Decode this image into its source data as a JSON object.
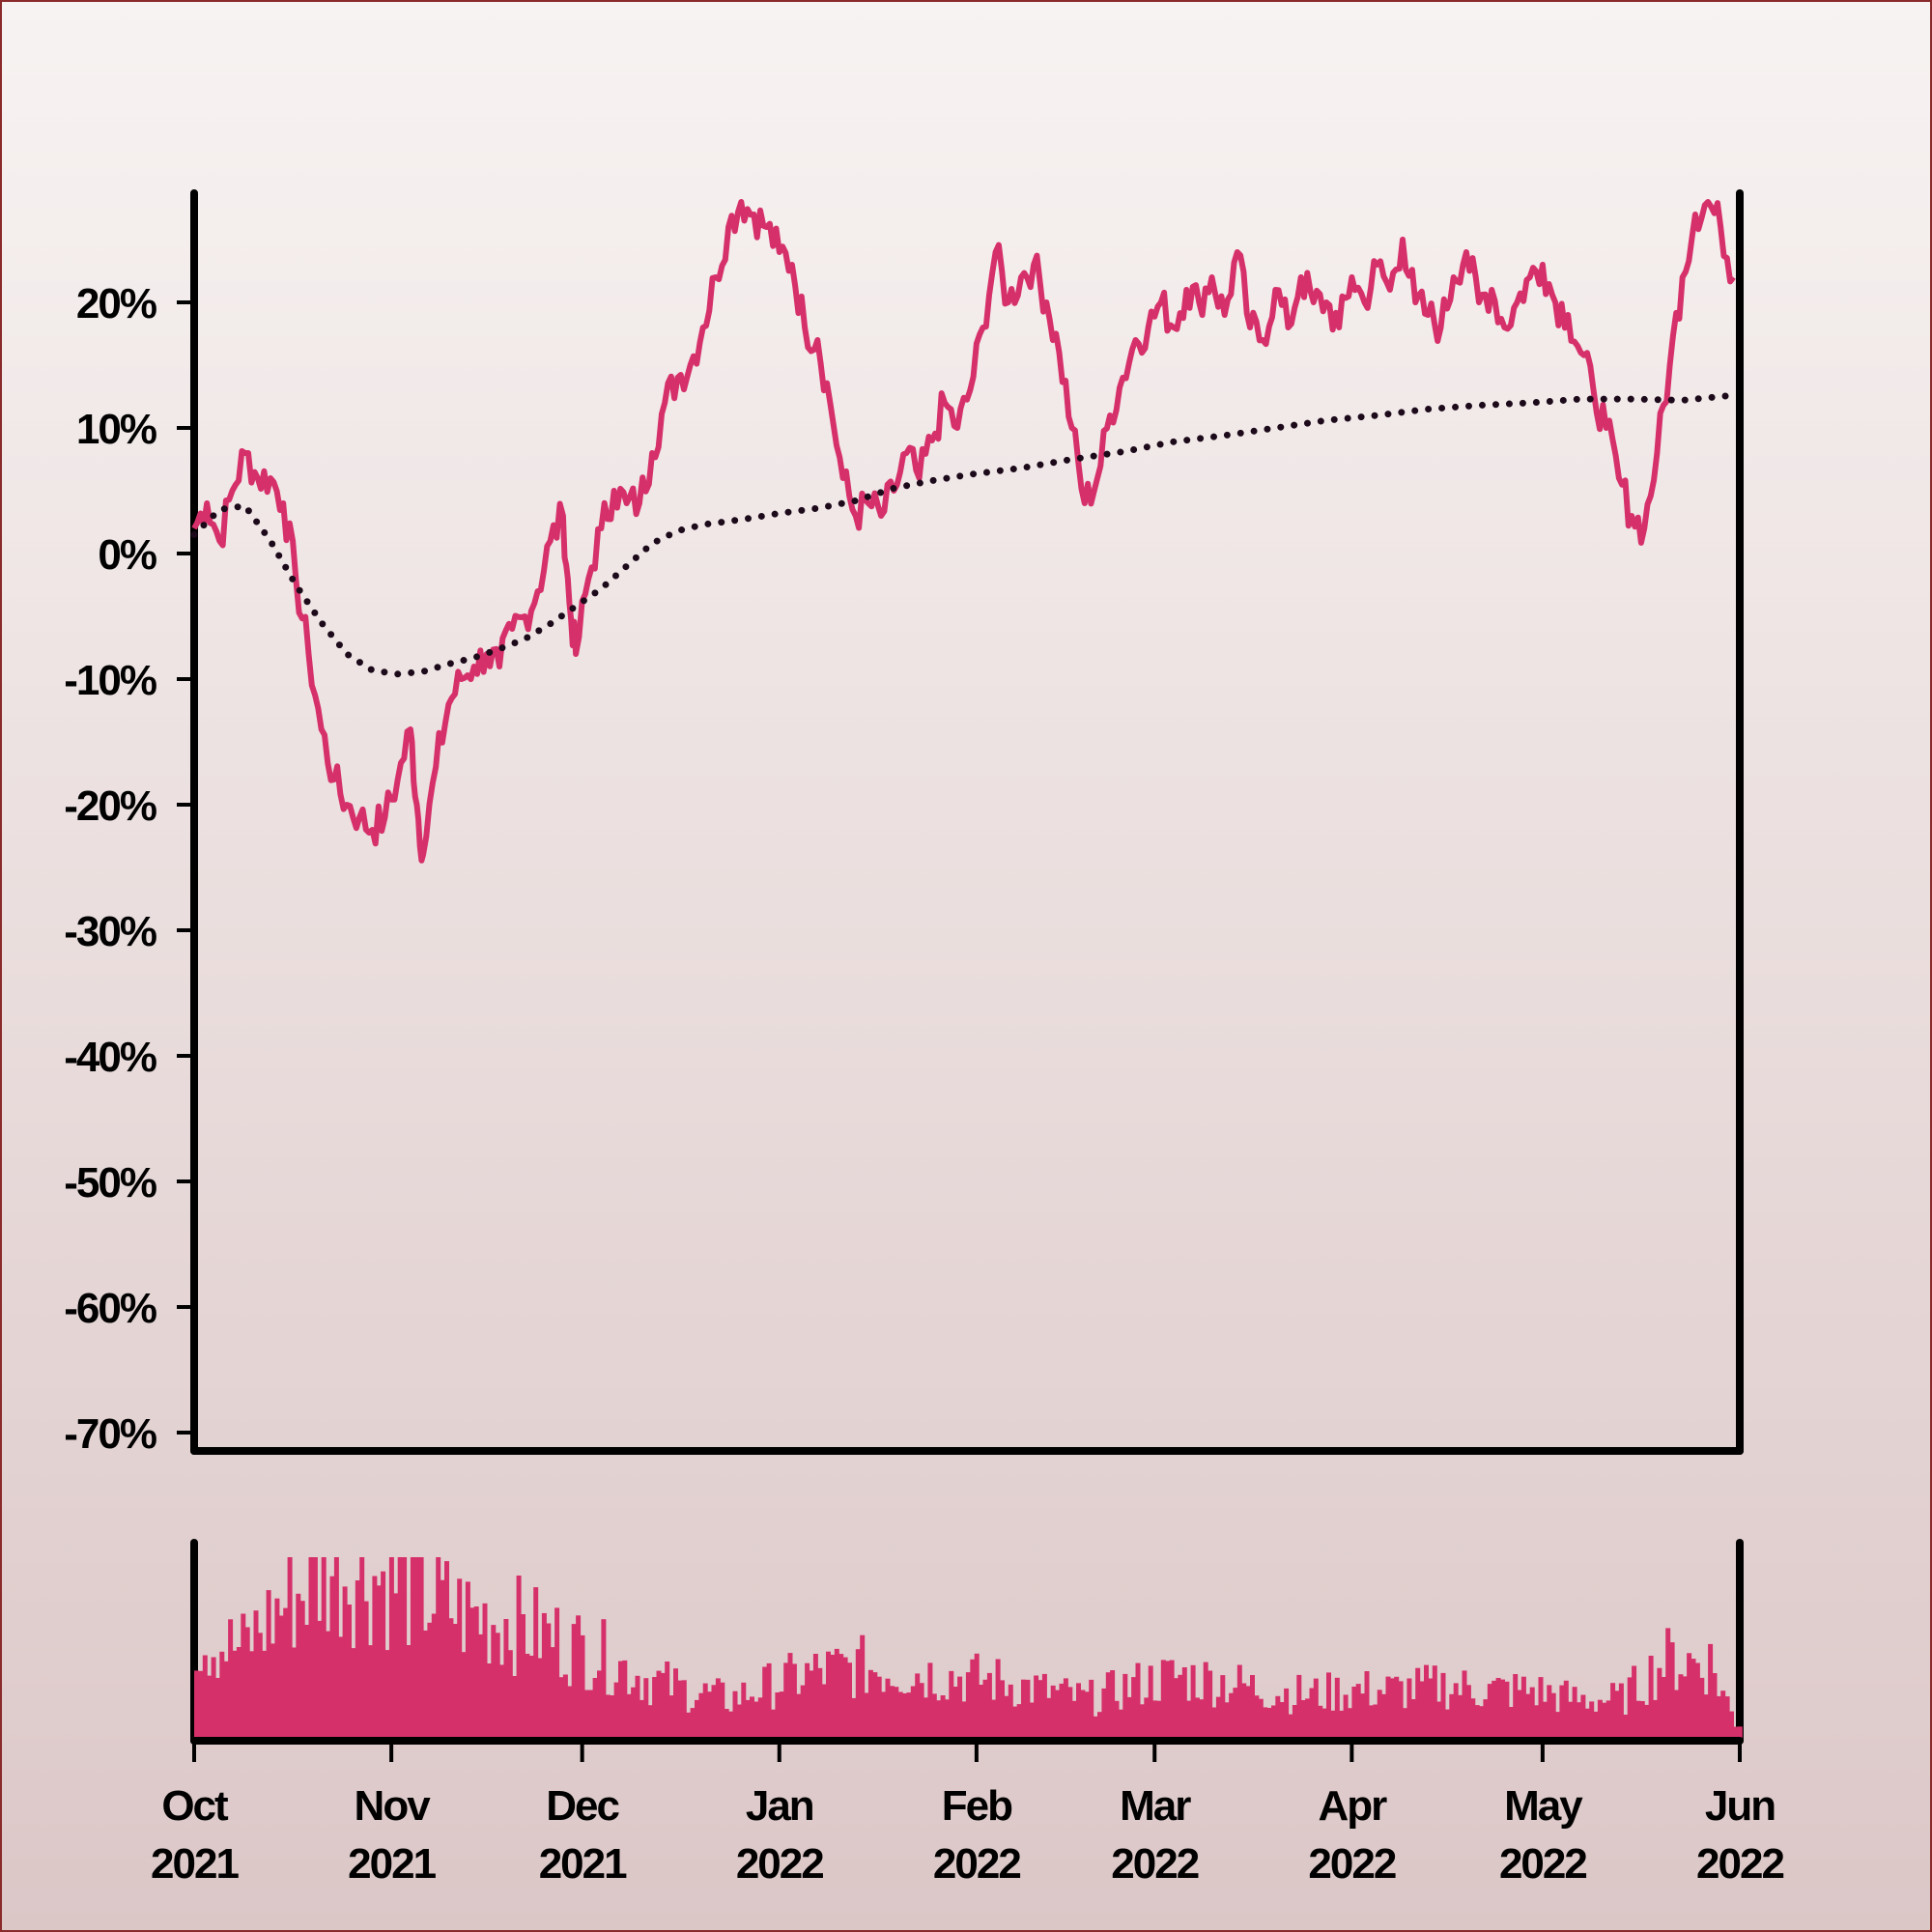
{
  "chart_data": {
    "type": "line",
    "title": "",
    "xlabel": "",
    "ylabel": "",
    "x_range": [
      "2021-10-01",
      "2022-06-01"
    ],
    "ylim": [
      -70,
      28
    ],
    "y_ticks": [
      "20%",
      "10%",
      "0%",
      "-10%",
      "-20%",
      "-30%",
      "-40%",
      "-50%",
      "-60%",
      "-70%"
    ],
    "x_ticks": [
      {
        "month": "Oct",
        "year": "2021"
      },
      {
        "month": "Nov",
        "year": "2021"
      },
      {
        "month": "Dec",
        "year": "2021"
      },
      {
        "month": "Jan",
        "year": "2022"
      },
      {
        "month": "Feb",
        "year": "2022"
      },
      {
        "month": "Mar",
        "year": "2022"
      },
      {
        "month": "Apr",
        "year": "2022"
      },
      {
        "month": "May",
        "year": "2022"
      },
      {
        "month": "Jun",
        "year": "2022"
      }
    ],
    "colors": {
      "series": "#d6306a",
      "average": "#1c0a1a",
      "axis": "#000000"
    },
    "series": [
      {
        "style": "solid",
        "points": [
          [
            "2021-10-01",
            2
          ],
          [
            "2021-10-03",
            4
          ],
          [
            "2021-10-05",
            1
          ],
          [
            "2021-10-07",
            5
          ],
          [
            "2021-10-09",
            8
          ],
          [
            "2021-10-11",
            6
          ],
          [
            "2021-10-13",
            6
          ],
          [
            "2021-10-15",
            4
          ],
          [
            "2021-10-17",
            -2
          ],
          [
            "2021-10-19",
            -8
          ],
          [
            "2021-10-21",
            -14
          ],
          [
            "2021-10-23",
            -18
          ],
          [
            "2021-10-25",
            -20
          ],
          [
            "2021-10-27",
            -21
          ],
          [
            "2021-10-29",
            -22
          ],
          [
            "2021-10-31",
            -21
          ],
          [
            "2021-11-02",
            -18
          ],
          [
            "2021-11-04",
            -14
          ],
          [
            "2021-11-05",
            -20
          ],
          [
            "2021-11-06",
            -24
          ],
          [
            "2021-11-08",
            -17
          ],
          [
            "2021-11-10",
            -12
          ],
          [
            "2021-11-12",
            -10
          ],
          [
            "2021-11-14",
            -9
          ],
          [
            "2021-11-16",
            -8
          ],
          [
            "2021-11-18",
            -9
          ],
          [
            "2021-11-20",
            -6
          ],
          [
            "2021-11-22",
            -5
          ],
          [
            "2021-11-24",
            -3
          ],
          [
            "2021-11-26",
            1
          ],
          [
            "2021-11-28",
            3
          ],
          [
            "2021-11-29",
            -4
          ],
          [
            "2021-11-30",
            -8
          ],
          [
            "2021-12-02",
            -2
          ],
          [
            "2021-12-04",
            2
          ],
          [
            "2021-12-06",
            5
          ],
          [
            "2021-12-08",
            4
          ],
          [
            "2021-12-10",
            4
          ],
          [
            "2021-12-12",
            8
          ],
          [
            "2021-12-14",
            12
          ],
          [
            "2021-12-16",
            14
          ],
          [
            "2021-12-18",
            15
          ],
          [
            "2021-12-20",
            18
          ],
          [
            "2021-12-22",
            22
          ],
          [
            "2021-12-24",
            26
          ],
          [
            "2021-12-26",
            28
          ],
          [
            "2021-12-28",
            27
          ],
          [
            "2021-12-30",
            26
          ],
          [
            "2022-01-01",
            24
          ],
          [
            "2022-01-03",
            23
          ],
          [
            "2022-01-05",
            18
          ],
          [
            "2022-01-07",
            17
          ],
          [
            "2022-01-09",
            12
          ],
          [
            "2022-01-11",
            6
          ],
          [
            "2022-01-13",
            3
          ],
          [
            "2022-01-15",
            4
          ],
          [
            "2022-01-17",
            3
          ],
          [
            "2022-01-19",
            5
          ],
          [
            "2022-01-21",
            8
          ],
          [
            "2022-01-23",
            6
          ],
          [
            "2022-01-25",
            9
          ],
          [
            "2022-01-27",
            12
          ],
          [
            "2022-01-29",
            10
          ],
          [
            "2022-01-31",
            13
          ],
          [
            "2022-02-02",
            18
          ],
          [
            "2022-02-04",
            24
          ],
          [
            "2022-02-06",
            20
          ],
          [
            "2022-02-08",
            22
          ],
          [
            "2022-02-10",
            23
          ],
          [
            "2022-02-12",
            20
          ],
          [
            "2022-02-14",
            16
          ],
          [
            "2022-02-16",
            10
          ],
          [
            "2022-02-18",
            4
          ],
          [
            "2022-02-20",
            6
          ],
          [
            "2022-02-22",
            11
          ],
          [
            "2022-02-24",
            14
          ],
          [
            "2022-02-26",
            17
          ],
          [
            "2022-02-28",
            18
          ],
          [
            "2022-03-02",
            20
          ],
          [
            "2022-03-04",
            18
          ],
          [
            "2022-03-06",
            21
          ],
          [
            "2022-03-08",
            20
          ],
          [
            "2022-03-10",
            22
          ],
          [
            "2022-03-12",
            19
          ],
          [
            "2022-03-14",
            24
          ],
          [
            "2022-03-16",
            18
          ],
          [
            "2022-03-18",
            17
          ],
          [
            "2022-03-20",
            21
          ],
          [
            "2022-03-22",
            18
          ],
          [
            "2022-03-24",
            22
          ],
          [
            "2022-03-26",
            20
          ],
          [
            "2022-03-28",
            20
          ],
          [
            "2022-03-30",
            18
          ],
          [
            "2022-04-01",
            22
          ],
          [
            "2022-04-03",
            20
          ],
          [
            "2022-04-05",
            23
          ],
          [
            "2022-04-07",
            21
          ],
          [
            "2022-04-09",
            25
          ],
          [
            "2022-04-11",
            20
          ],
          [
            "2022-04-13",
            19
          ],
          [
            "2022-04-15",
            18
          ],
          [
            "2022-04-17",
            22
          ],
          [
            "2022-04-19",
            24
          ],
          [
            "2022-04-21",
            20
          ],
          [
            "2022-04-23",
            21
          ],
          [
            "2022-04-25",
            18
          ],
          [
            "2022-04-27",
            20
          ],
          [
            "2022-04-29",
            22
          ],
          [
            "2022-05-01",
            23
          ],
          [
            "2022-05-03",
            20
          ],
          [
            "2022-05-05",
            19
          ],
          [
            "2022-05-07",
            16
          ],
          [
            "2022-05-09",
            13
          ],
          [
            "2022-05-11",
            10
          ],
          [
            "2022-05-13",
            6
          ],
          [
            "2022-05-15",
            3
          ],
          [
            "2022-05-17",
            2
          ],
          [
            "2022-05-19",
            8
          ],
          [
            "2022-05-21",
            15
          ],
          [
            "2022-05-23",
            22
          ],
          [
            "2022-05-25",
            27
          ],
          [
            "2022-05-27",
            28
          ],
          [
            "2022-05-29",
            26
          ],
          [
            "2022-05-31",
            22
          ]
        ]
      },
      {
        "style": "dotted",
        "points": [
          [
            "2021-10-01",
            1.5
          ],
          [
            "2021-10-05",
            3.5
          ],
          [
            "2021-10-09",
            3.8
          ],
          [
            "2021-10-13",
            1
          ],
          [
            "2021-10-17",
            -2.5
          ],
          [
            "2021-10-21",
            -5.5
          ],
          [
            "2021-10-25",
            -8
          ],
          [
            "2021-10-29",
            -9.3
          ],
          [
            "2021-11-02",
            -9.6
          ],
          [
            "2021-11-06",
            -9.4
          ],
          [
            "2021-11-10",
            -8.8
          ],
          [
            "2021-11-14",
            -8.3
          ],
          [
            "2021-11-18",
            -7.6
          ],
          [
            "2021-11-22",
            -6.8
          ],
          [
            "2021-11-26",
            -5.6
          ],
          [
            "2021-11-30",
            -4.2
          ],
          [
            "2021-12-04",
            -2.8
          ],
          [
            "2021-12-08",
            -1
          ],
          [
            "2021-12-12",
            0.8
          ],
          [
            "2021-12-16",
            1.8
          ],
          [
            "2021-12-20",
            2.3
          ],
          [
            "2021-12-26",
            2.7
          ],
          [
            "2022-01-01",
            3.2
          ],
          [
            "2022-01-07",
            3.6
          ],
          [
            "2022-01-13",
            4.2
          ],
          [
            "2022-01-19",
            5.2
          ],
          [
            "2022-01-25",
            5.8
          ],
          [
            "2022-01-31",
            6.3
          ],
          [
            "2022-02-08",
            6.8
          ],
          [
            "2022-02-16",
            7.5
          ],
          [
            "2022-02-24",
            8.1
          ],
          [
            "2022-03-04",
            8.9
          ],
          [
            "2022-03-12",
            9.4
          ],
          [
            "2022-03-20",
            10
          ],
          [
            "2022-03-28",
            10.6
          ],
          [
            "2022-04-05",
            11.0
          ],
          [
            "2022-04-13",
            11.5
          ],
          [
            "2022-04-21",
            11.8
          ],
          [
            "2022-04-29",
            12.0
          ],
          [
            "2022-05-07",
            12.3
          ],
          [
            "2022-05-15",
            12.3
          ],
          [
            "2022-05-23",
            12.2
          ],
          [
            "2022-05-31",
            12.6
          ]
        ]
      }
    ],
    "volume": {
      "type": "bar",
      "shape": [
        [
          "2021-10-01",
          45
        ],
        [
          "2021-10-08",
          40
        ],
        [
          "2021-10-15",
          60
        ],
        [
          "2021-10-22",
          75
        ],
        [
          "2021-10-29",
          72
        ],
        [
          "2021-11-05",
          65
        ],
        [
          "2021-11-12",
          55
        ],
        [
          "2021-11-19",
          52
        ],
        [
          "2021-11-26",
          45
        ],
        [
          "2021-12-03",
          38
        ],
        [
          "2021-12-10",
          28
        ],
        [
          "2021-12-17",
          22
        ],
        [
          "2021-12-24",
          18
        ],
        [
          "2021-12-31",
          25
        ],
        [
          "2022-01-07",
          30
        ],
        [
          "2022-01-14",
          32
        ],
        [
          "2022-01-21",
          30
        ],
        [
          "2022-01-28",
          28
        ],
        [
          "2022-02-04",
          26
        ],
        [
          "2022-02-11",
          22
        ],
        [
          "2022-02-18",
          18
        ],
        [
          "2022-02-25",
          24
        ],
        [
          "2022-03-04",
          28
        ],
        [
          "2022-03-11",
          26
        ],
        [
          "2022-03-18",
          22
        ],
        [
          "2022-03-25",
          20
        ],
        [
          "2022-04-01",
          22
        ],
        [
          "2022-04-08",
          22
        ],
        [
          "2022-04-15",
          24
        ],
        [
          "2022-04-22",
          22
        ],
        [
          "2022-04-29",
          22
        ],
        [
          "2022-05-06",
          18
        ],
        [
          "2022-05-13",
          18
        ],
        [
          "2022-05-20",
          35
        ],
        [
          "2022-05-27",
          34
        ],
        [
          "2022-05-31",
          8
        ]
      ]
    }
  }
}
